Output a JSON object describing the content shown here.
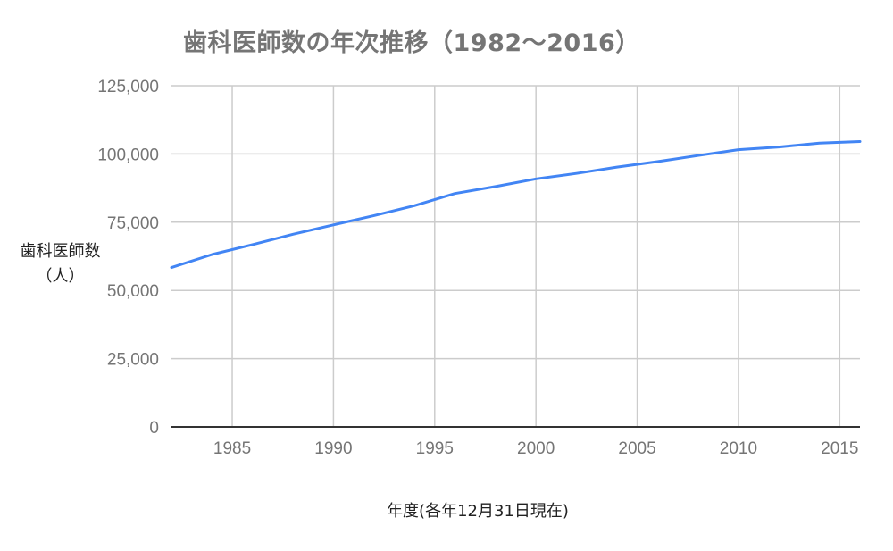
{
  "chart_data": {
    "type": "line",
    "title": "歯科医師数の年次推移（1982〜2016）",
    "xlabel": "年度(各年12月31日現在)",
    "ylabel": "歯科医師数（人）",
    "ylabel_lines": [
      "歯科医師数",
      "（人）"
    ],
    "xlim": [
      1982,
      2016
    ],
    "ylim": [
      0,
      125000
    ],
    "grid": true,
    "legend": "none",
    "x_ticks": [
      1985,
      1990,
      1995,
      2000,
      2005,
      2010,
      2015
    ],
    "x_tick_labels": [
      "1985",
      "1990",
      "1995",
      "2000",
      "2005",
      "2010",
      "2015"
    ],
    "y_ticks": [
      0,
      25000,
      50000,
      75000,
      100000,
      125000
    ],
    "y_tick_labels": [
      "0",
      "25,000",
      "50,000",
      "75,000",
      "100,000",
      "125,000"
    ],
    "series": [
      {
        "name": "歯科医師数",
        "color": "#4285f4",
        "x": [
          1982,
          1984,
          1986,
          1988,
          1990,
          1992,
          1994,
          1996,
          1998,
          2000,
          2002,
          2004,
          2006,
          2008,
          2010,
          2012,
          2014,
          2016
        ],
        "values": [
          58362,
          63145,
          66797,
          70572,
          74028,
          77416,
          81055,
          85518,
          88061,
          90857,
          92874,
          95197,
          97198,
          99426,
          101576,
          102551,
          103972,
          104533
        ]
      }
    ]
  }
}
